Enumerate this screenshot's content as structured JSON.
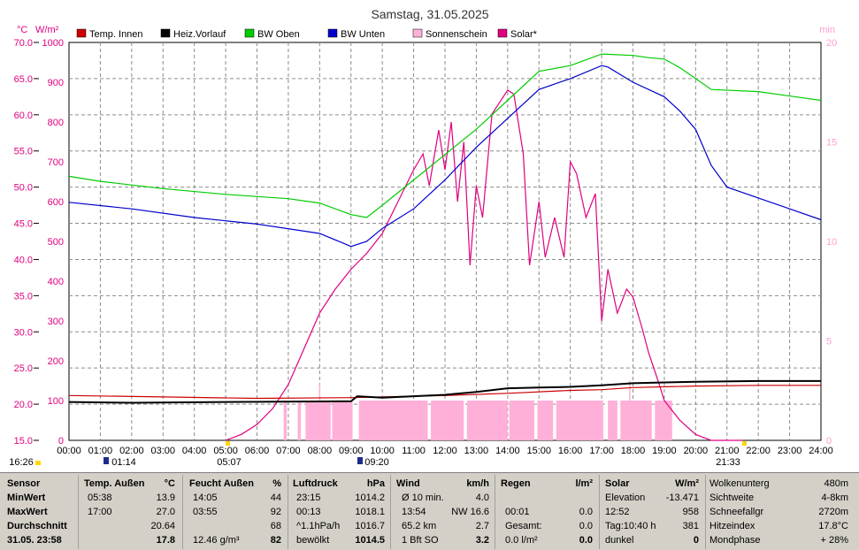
{
  "title": "Samstag, 31.05.2025",
  "left_unit_c": "°C",
  "left_unit_w": "W/m²",
  "right_unit": "min",
  "legend": [
    {
      "label": "Temp. Innen",
      "color": "#cc0000"
    },
    {
      "label": "Heiz.Vorlauf",
      "color": "#000000"
    },
    {
      "label": "BW Oben",
      "color": "#00cc00"
    },
    {
      "label": "BW Unten",
      "color": "#0000cc"
    },
    {
      "label": "Sonnenschein",
      "color": "#ffb0d8"
    },
    {
      "label": "Solar*",
      "color": "#e0007f"
    }
  ],
  "markers": {
    "sunrise": "05:07",
    "sunset": "21:33",
    "moon_start": "16:26",
    "moon_rise": "01:14",
    "moon_set": "09:20"
  },
  "chart_data": {
    "type": "line",
    "x_ticks": [
      "00:00",
      "01:00",
      "02:00",
      "03:00",
      "04:00",
      "05:00",
      "06:00",
      "07:00",
      "08:00",
      "09:00",
      "10:00",
      "11:00",
      "12:00",
      "13:00",
      "14:00",
      "15:00",
      "16:00",
      "17:00",
      "18:00",
      "19:00",
      "20:00",
      "21:00",
      "22:00",
      "23:00",
      "24:00"
    ],
    "y_left_temp_ticks": [
      "15.0",
      "20.0",
      "25.0",
      "30.0",
      "35.0",
      "40.0",
      "45.0",
      "50.0",
      "55.0",
      "60.0",
      "65.0",
      "70.0"
    ],
    "y_left_solar_ticks": [
      "0",
      "100",
      "200",
      "300",
      "400",
      "500",
      "600",
      "700",
      "800",
      "900",
      "1000"
    ],
    "y_right_ticks": [
      "0",
      "5",
      "10",
      "15",
      "20"
    ],
    "xlim": [
      0,
      24
    ],
    "ylim_temp": [
      15,
      70
    ],
    "ylim_solar": [
      0,
      1000
    ],
    "ylim_sun_min": [
      0,
      20
    ],
    "series": [
      {
        "name": "Temp. Innen",
        "axis": "temp",
        "color": "#cc0000",
        "x": [
          0,
          3,
          6,
          9,
          10,
          12,
          14,
          16,
          17,
          18,
          20,
          22,
          24
        ],
        "y": [
          21.2,
          21.0,
          20.8,
          20.9,
          21.0,
          21.2,
          21.5,
          21.9,
          22.0,
          22.3,
          22.5,
          22.6,
          22.6
        ]
      },
      {
        "name": "Heiz.Vorlauf",
        "axis": "temp",
        "color": "#000000",
        "x": [
          0,
          2,
          5,
          9,
          9.2,
          10,
          12,
          13,
          14,
          15,
          16,
          17,
          18,
          19,
          20,
          22,
          24
        ],
        "y": [
          20.3,
          20.2,
          20.3,
          20.4,
          21.1,
          20.9,
          21.3,
          21.7,
          22.2,
          22.3,
          22.4,
          22.6,
          22.9,
          23.0,
          23.1,
          23.2,
          23.2
        ]
      },
      {
        "name": "BW Oben",
        "axis": "temp",
        "color": "#00cc00",
        "x": [
          0,
          1,
          3,
          5,
          7,
          8,
          9,
          9.5,
          10,
          11,
          12,
          13,
          14,
          15,
          16,
          17,
          18,
          18.5,
          19,
          19.5,
          20,
          20.5,
          22,
          24
        ],
        "y": [
          51.5,
          50.8,
          49.8,
          49.0,
          48.4,
          47.8,
          46.2,
          45.8,
          47.5,
          51.0,
          54.5,
          58.0,
          62.0,
          66.0,
          66.8,
          68.4,
          68.2,
          67.9,
          67.7,
          66.5,
          65.0,
          63.5,
          63.2,
          62.0
        ]
      },
      {
        "name": "BW Unten",
        "axis": "temp",
        "color": "#0000cc",
        "x": [
          0,
          2,
          4,
          6,
          8,
          9,
          9.5,
          10,
          11,
          12,
          13,
          14,
          15,
          16,
          17,
          17.2,
          18,
          19,
          19.5,
          20,
          20.5,
          21,
          22,
          23,
          24
        ],
        "y": [
          47.9,
          47.0,
          45.8,
          44.9,
          43.6,
          41.8,
          42.5,
          44.3,
          47.0,
          51.0,
          55.5,
          59.5,
          63.5,
          65.0,
          66.8,
          66.6,
          64.5,
          62.5,
          60.5,
          58.0,
          53.0,
          50.0,
          48.5,
          47.0,
          45.5
        ]
      },
      {
        "name": "Solar*",
        "axis": "solar",
        "color": "#e0007f",
        "x": [
          5.0,
          5.5,
          6.0,
          6.5,
          7.0,
          7.5,
          8.0,
          8.5,
          9.0,
          9.5,
          10.0,
          10.5,
          11.0,
          11.3,
          11.5,
          11.8,
          12.0,
          12.2,
          12.4,
          12.6,
          12.8,
          13.0,
          13.2,
          13.5,
          14.0,
          14.2,
          14.5,
          14.7,
          15.0,
          15.2,
          15.5,
          15.8,
          16.0,
          16.2,
          16.5,
          16.8,
          17.0,
          17.2,
          17.5,
          17.8,
          18.0,
          18.3,
          18.5,
          18.8,
          19.0,
          19.5,
          20.0,
          20.5,
          21.0,
          21.5
        ],
        "y": [
          0,
          15,
          40,
          80,
          140,
          230,
          320,
          380,
          430,
          470,
          520,
          600,
          680,
          720,
          640,
          780,
          680,
          800,
          600,
          750,
          440,
          640,
          560,
          820,
          880,
          870,
          720,
          440,
          600,
          460,
          560,
          460,
          700,
          670,
          560,
          620,
          300,
          430,
          320,
          380,
          360,
          280,
          220,
          150,
          100,
          50,
          15,
          0,
          0,
          0
        ]
      }
    ],
    "sunshine_bars": [
      {
        "start": 6.85,
        "end": 6.95
      },
      {
        "start": 7.3,
        "end": 7.4
      },
      {
        "start": 7.55,
        "end": 8.35
      },
      {
        "start": 8.4,
        "end": 9.05
      },
      {
        "start": 9.25,
        "end": 11.45
      },
      {
        "start": 11.55,
        "end": 12.6
      },
      {
        "start": 12.7,
        "end": 14.0
      },
      {
        "start": 14.05,
        "end": 14.85
      },
      {
        "start": 14.95,
        "end": 15.45
      },
      {
        "start": 15.55,
        "end": 17.05
      },
      {
        "start": 17.2,
        "end": 17.5
      },
      {
        "start": 17.6,
        "end": 18.6
      },
      {
        "start": 18.7,
        "end": 19.25
      }
    ]
  },
  "stats": {
    "headers": [
      "Sensor",
      "Temp. Außen",
      "°C",
      "Feucht Außen",
      "%",
      "Luftdruck",
      "hPa",
      "Wind",
      "km/h",
      "Regen",
      "l/m²",
      "Solar",
      "W/m²"
    ],
    "row_labels": [
      "MinWert",
      "MaxWert",
      "Durchschnitt",
      "31.05. 23:58"
    ],
    "temp": [
      [
        "05:38",
        "13.9"
      ],
      [
        "17:00",
        "27.0"
      ],
      [
        "",
        "20.64"
      ],
      [
        "",
        "17.8"
      ]
    ],
    "humid": [
      [
        "14:05",
        "44"
      ],
      [
        "03:55",
        "92"
      ],
      [
        "",
        "68"
      ],
      [
        "12.46 g/m³",
        "82"
      ]
    ],
    "press": [
      [
        "23:15",
        "1014.2"
      ],
      [
        "00:13",
        "1018.1"
      ],
      [
        "^1.1hPa/h",
        "1016.7"
      ],
      [
        "bewölkt",
        "1014.5"
      ]
    ],
    "wind": [
      [
        "Ø 10 min.",
        "4.0"
      ],
      [
        "13:54",
        "NW 16.6"
      ],
      [
        "65.2 km",
        "2.7"
      ],
      [
        "1 Bft SO",
        "3.2"
      ]
    ],
    "rain": [
      [
        "",
        ""
      ],
      [
        "00:01",
        "0.0"
      ],
      [
        "Gesamt:",
        "0.0"
      ],
      [
        "0.0 l/m²",
        "0.0"
      ]
    ],
    "solar": [
      [
        "Elevation",
        "-13.471"
      ],
      [
        "12:52",
        "958"
      ],
      [
        "Tag:10:40 h",
        "381"
      ],
      [
        "dunkel",
        "0"
      ]
    ],
    "extra": [
      [
        "Wolkenunterg",
        "480m"
      ],
      [
        "Sichtweite",
        "4-8km"
      ],
      [
        "Schneefallgr",
        "2720m"
      ],
      [
        "Hitzeindex",
        "17.8°C"
      ],
      [
        "Mondphase",
        "+ 28%"
      ]
    ]
  }
}
